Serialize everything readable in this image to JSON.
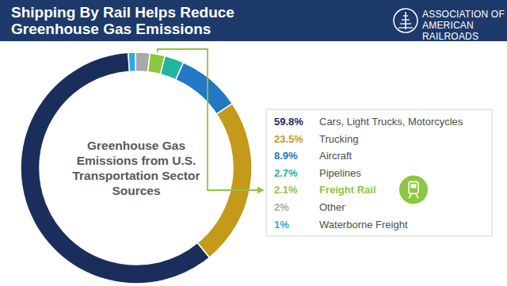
{
  "chart_data": {
    "type": "pie",
    "title": "Shipping By Rail Helps Reduce Greenhouse Gas Emissions",
    "subtitle": "Greenhouse Gas Emissions from U.S. Transportation Sector Sources",
    "source": "ASSOCIATION OF AMERICAN RAILROADS",
    "categories": [
      "Cars, Light Trucks, Motorcycles",
      "Trucking",
      "Aircraft",
      "Pipelines",
      "Freight Rail",
      "Other",
      "Waterborne Freight"
    ],
    "values": [
      59.8,
      23.5,
      8.9,
      2.7,
      2.1,
      2,
      1
    ],
    "value_labels": [
      "59.8%",
      "23.5%",
      "8.9%",
      "2.7%",
      "2.1%",
      "2%",
      "1%"
    ],
    "colors": [
      "#1b2d5b",
      "#c59a1a",
      "#2278c2",
      "#20b59f",
      "#8dc63f",
      "#a7a9ac",
      "#29abe2"
    ],
    "data_labels": true,
    "legend": "right"
  }
}
